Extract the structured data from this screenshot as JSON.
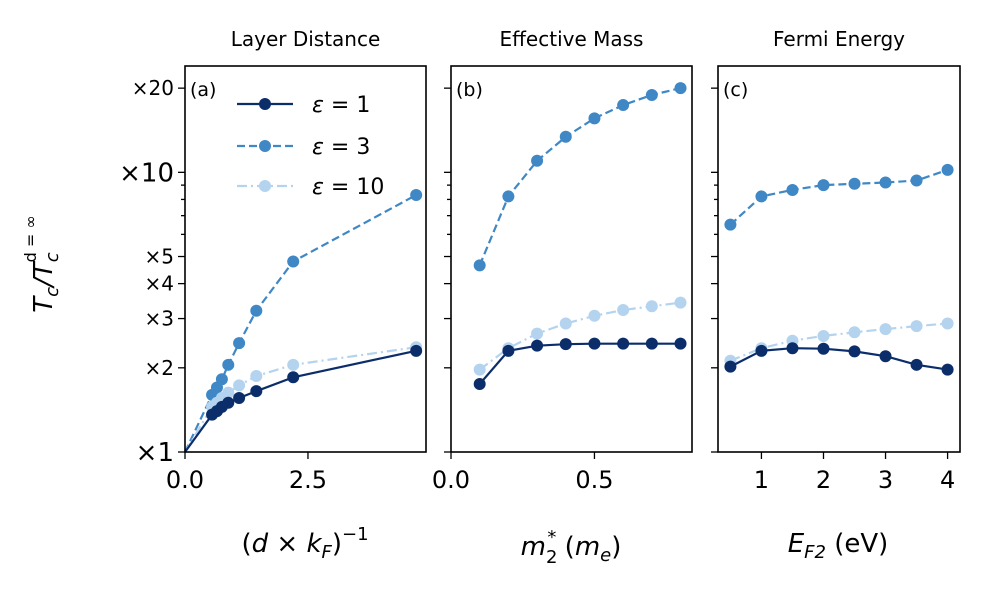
{
  "chart_data": {
    "type": "line",
    "ylabel": "T_c/T_c^{d=∞}",
    "ylabel_parts": {
      "base": "T",
      "sub1": "c",
      "sep": "/T",
      "sub2": "c",
      "sup2": "d = ∞"
    },
    "yscale": "log",
    "ylim": [
      1,
      24
    ],
    "yticks": [
      {
        "value": 1,
        "label": "×1",
        "major": true
      },
      {
        "value": 2,
        "label": "×2",
        "major": false
      },
      {
        "value": 3,
        "label": "×3",
        "major": false
      },
      {
        "value": 4,
        "label": "×4",
        "major": false
      },
      {
        "value": 5,
        "label": "×5",
        "major": false
      },
      {
        "value": 10,
        "label": "×10",
        "major": true
      },
      {
        "value": 20,
        "label": "×20",
        "major": false
      }
    ],
    "minor_ticks": [
      6,
      7,
      8,
      9
    ],
    "colors": {
      "eps1": "#0b2e6b",
      "eps3": "#3f88c5",
      "eps10": "#b4d3ee"
    },
    "legend": [
      {
        "name": "ε = 1",
        "style": "solid",
        "color": "#0b2e6b"
      },
      {
        "name": "ε = 3",
        "style": "dashed",
        "color": "#3f88c5"
      },
      {
        "name": "ε = 10",
        "style": "dashdot",
        "color": "#b4d3ee"
      }
    ],
    "panels": [
      {
        "label": "(a)",
        "title": "Layer Distance",
        "xlabel": "(d × k_F)^{-1}",
        "xlabel_parts": {
          "pre": "(",
          "d": "d",
          "times": " × ",
          "k": "k",
          "sub": "F",
          "post": ")",
          "sup": "−1"
        },
        "xlim": [
          0,
          4.9
        ],
        "xticks": [
          {
            "value": 0,
            "label": "0.0"
          },
          {
            "value": 2.5,
            "label": "2.5"
          }
        ],
        "show_yticklabels": true,
        "series": [
          {
            "name": "ε = 1",
            "x": [
              0,
              0.55,
              0.65,
              0.75,
              0.88,
              1.1,
              1.45,
              2.2,
              4.7
            ],
            "y": [
              1,
              1.36,
              1.4,
              1.45,
              1.5,
              1.56,
              1.65,
              1.85,
              2.3
            ]
          },
          {
            "name": "ε = 3",
            "x": [
              0,
              0.55,
              0.65,
              0.75,
              0.88,
              1.1,
              1.45,
              2.2,
              4.7
            ],
            "y": [
              1,
              1.6,
              1.7,
              1.82,
              2.05,
              2.45,
              3.2,
              4.8,
              8.3
            ]
          },
          {
            "name": "ε = 10",
            "x": [
              0,
              0.55,
              0.65,
              0.75,
              0.88,
              1.1,
              1.45,
              2.2,
              4.7
            ],
            "y": [
              1,
              1.45,
              1.5,
              1.56,
              1.63,
              1.73,
              1.87,
              2.05,
              2.37
            ]
          }
        ]
      },
      {
        "label": "(b)",
        "title": "Effective Mass",
        "xlabel": "m_2^* (m_e)",
        "xlabel_parts": {
          "m": "m",
          "sub": "2",
          "sup": "*",
          "mid": " (",
          "me": "m",
          "mesub": "e",
          "close": ")"
        },
        "xlim": [
          0,
          0.84
        ],
        "xticks": [
          {
            "value": 0,
            "label": "0.0"
          },
          {
            "value": 0.5,
            "label": "0.5"
          }
        ],
        "show_yticklabels": false,
        "series": [
          {
            "name": "ε = 1",
            "x": [
              0.1,
              0.2,
              0.3,
              0.4,
              0.5,
              0.6,
              0.7,
              0.8
            ],
            "y": [
              1.75,
              2.3,
              2.4,
              2.43,
              2.44,
              2.44,
              2.44,
              2.44
            ]
          },
          {
            "name": "ε = 3",
            "x": [
              0.1,
              0.2,
              0.3,
              0.4,
              0.5,
              0.6,
              0.7,
              0.8
            ],
            "y": [
              4.65,
              8.2,
              11.0,
              13.4,
              15.6,
              17.4,
              18.9,
              20.0
            ]
          },
          {
            "name": "ε = 10",
            "x": [
              0.1,
              0.2,
              0.3,
              0.4,
              0.5,
              0.6,
              0.7,
              0.8
            ],
            "y": [
              1.97,
              2.35,
              2.65,
              2.88,
              3.07,
              3.22,
              3.32,
              3.42
            ]
          }
        ]
      },
      {
        "label": "(c)",
        "title": "Fermi Energy",
        "xlabel": "E_F2 (eV)",
        "xlabel_parts": {
          "e": "E",
          "sub": "F2",
          "post": " (eV)"
        },
        "xlim": [
          0.3,
          4.2
        ],
        "xticks": [
          {
            "value": 1,
            "label": "1"
          },
          {
            "value": 2,
            "label": "2"
          },
          {
            "value": 3,
            "label": "3"
          },
          {
            "value": 4,
            "label": "4"
          }
        ],
        "show_yticklabels": false,
        "series": [
          {
            "name": "ε = 1",
            "x": [
              0.5,
              1,
              1.5,
              2,
              2.5,
              3,
              3.5,
              4
            ],
            "y": [
              2.02,
              2.3,
              2.35,
              2.34,
              2.29,
              2.2,
              2.05,
              1.97
            ]
          },
          {
            "name": "ε = 3",
            "x": [
              0.5,
              1,
              1.5,
              2,
              2.5,
              3,
              3.5,
              4
            ],
            "y": [
              6.5,
              8.2,
              8.65,
              9.0,
              9.1,
              9.2,
              9.35,
              10.2
            ]
          },
          {
            "name": "ε = 10",
            "x": [
              0.5,
              1,
              1.5,
              2,
              2.5,
              3,
              3.5,
              4
            ],
            "y": [
              2.12,
              2.35,
              2.5,
              2.6,
              2.68,
              2.75,
              2.82,
              2.88
            ]
          }
        ]
      }
    ]
  }
}
